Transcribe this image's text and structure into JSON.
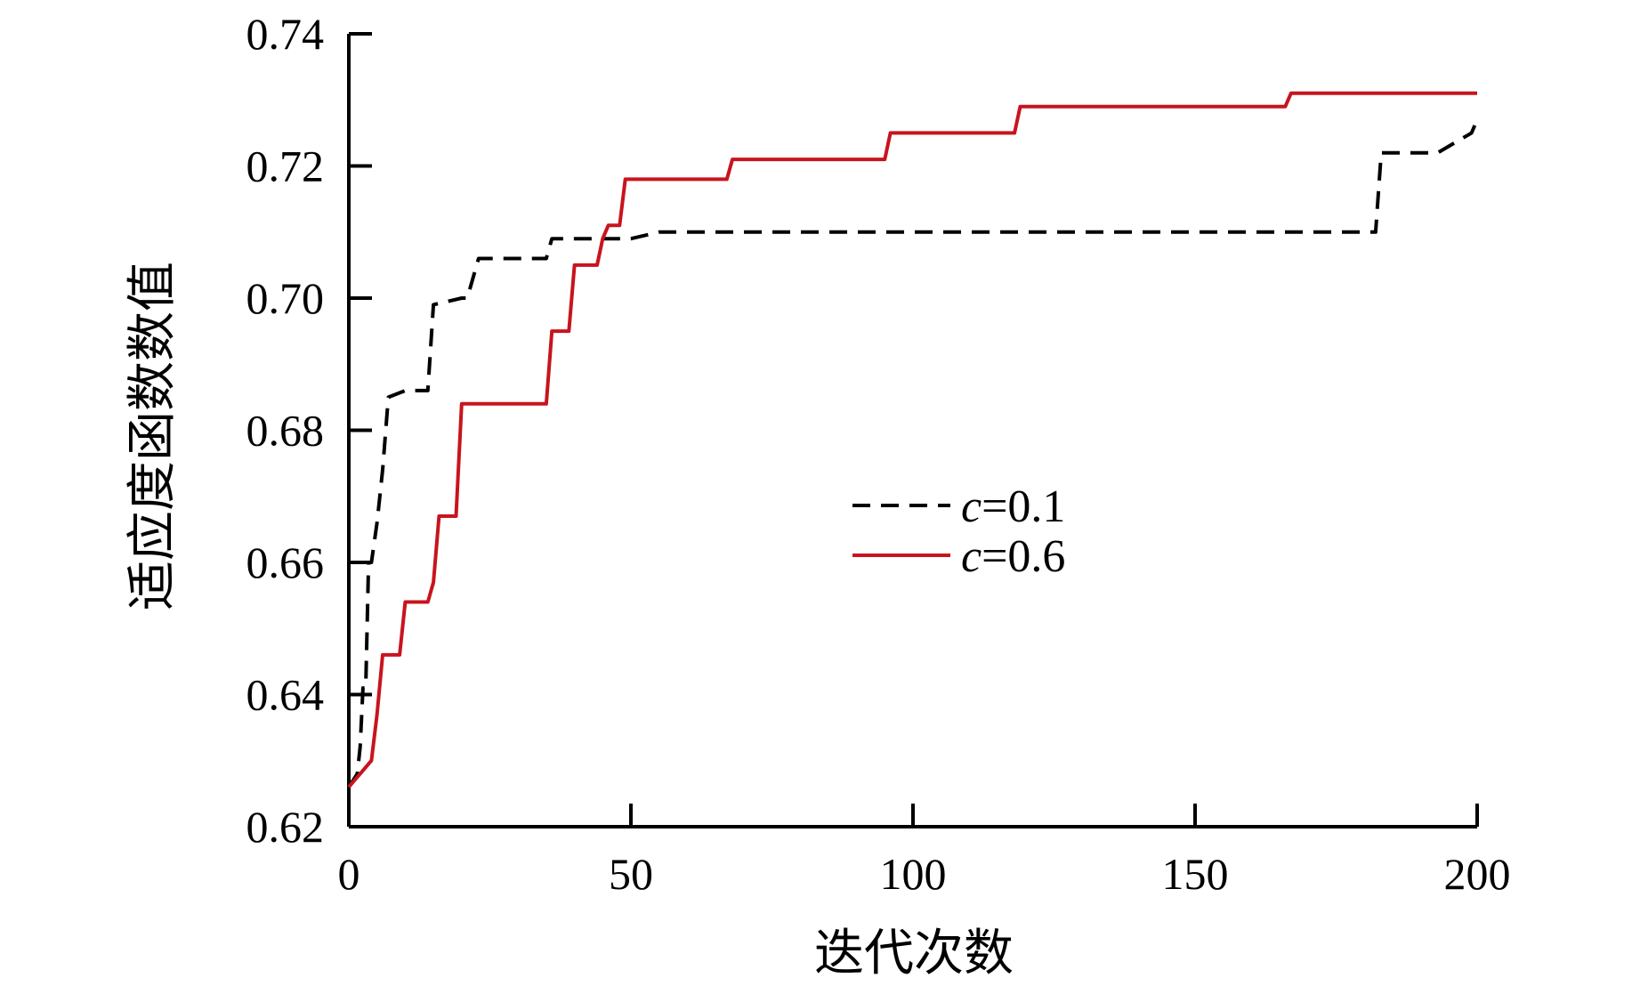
{
  "chart_data": {
    "type": "line",
    "title": "",
    "xlabel": "迭代次数",
    "ylabel": "适应度函数数值",
    "xlim": [
      0,
      200
    ],
    "ylim": [
      0.62,
      0.74
    ],
    "xticks": [
      0,
      50,
      100,
      150,
      200
    ],
    "xtick_labels": [
      "0",
      "50",
      "100",
      "150",
      "200"
    ],
    "yticks": [
      0.62,
      0.64,
      0.66,
      0.68,
      0.7,
      0.72,
      0.74
    ],
    "ytick_labels": [
      "0.62",
      "0.64",
      "0.66",
      "0.68",
      "0.70",
      "0.72",
      "0.74"
    ],
    "grid": false,
    "legend_position": "center-right",
    "series": [
      {
        "name": "c=0.1",
        "name_var": "c",
        "name_value": "=0.1",
        "style": "dashed",
        "color": "#000000",
        "points": [
          [
            0,
            0.626
          ],
          [
            1.5,
            0.628
          ],
          [
            2,
            0.632
          ],
          [
            2.5,
            0.641
          ],
          [
            3,
            0.641
          ],
          [
            3.5,
            0.66
          ],
          [
            4,
            0.66
          ],
          [
            5,
            0.666
          ],
          [
            6,
            0.674
          ],
          [
            7,
            0.685
          ],
          [
            10,
            0.686
          ],
          [
            14,
            0.686
          ],
          [
            15,
            0.699
          ],
          [
            20,
            0.7
          ],
          [
            21,
            0.7
          ],
          [
            23,
            0.706
          ],
          [
            35,
            0.706
          ],
          [
            36,
            0.709
          ],
          [
            50,
            0.709
          ],
          [
            55,
            0.71
          ],
          [
            100,
            0.71
          ],
          [
            150,
            0.71
          ],
          [
            182,
            0.71
          ],
          [
            183,
            0.722
          ],
          [
            192,
            0.722
          ],
          [
            193,
            0.722
          ],
          [
            199,
            0.725
          ],
          [
            200,
            0.727
          ]
        ]
      },
      {
        "name": "c=0.6",
        "name_var": "c",
        "name_value": "=0.6",
        "style": "solid",
        "color": "#c8141e",
        "points": [
          [
            0,
            0.626
          ],
          [
            1,
            0.627
          ],
          [
            2,
            0.628
          ],
          [
            3,
            0.629
          ],
          [
            4,
            0.63
          ],
          [
            5,
            0.637
          ],
          [
            6,
            0.646
          ],
          [
            9,
            0.646
          ],
          [
            10,
            0.654
          ],
          [
            14,
            0.654
          ],
          [
            15,
            0.657
          ],
          [
            16,
            0.667
          ],
          [
            19,
            0.667
          ],
          [
            20,
            0.684
          ],
          [
            35,
            0.684
          ],
          [
            36,
            0.695
          ],
          [
            39,
            0.695
          ],
          [
            40,
            0.705
          ],
          [
            44,
            0.705
          ],
          [
            45,
            0.709
          ],
          [
            46,
            0.711
          ],
          [
            48,
            0.711
          ],
          [
            49,
            0.718
          ],
          [
            67,
            0.718
          ],
          [
            68,
            0.721
          ],
          [
            95,
            0.721
          ],
          [
            96,
            0.725
          ],
          [
            118,
            0.725
          ],
          [
            119,
            0.729
          ],
          [
            166,
            0.729
          ],
          [
            167,
            0.731
          ],
          [
            200,
            0.731
          ]
        ]
      }
    ]
  }
}
